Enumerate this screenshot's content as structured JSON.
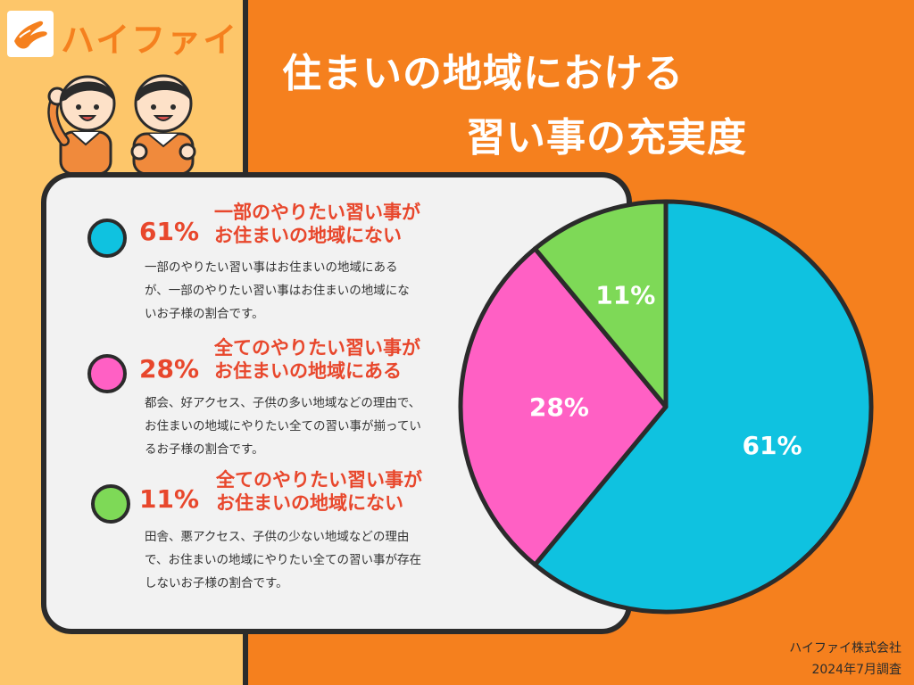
{
  "brand": {
    "name": "ハイファイ"
  },
  "title": {
    "line1": "住まいの地域における",
    "line2": "習い事の充実度"
  },
  "colors": {
    "cyan": "#0fc2e0",
    "pink": "#ff60c4",
    "green": "#7ed957",
    "accent": "#e8472c",
    "orange": "#f5801e"
  },
  "legend": [
    {
      "percent": "61%",
      "heading1": "一部のやりたい習い事が",
      "heading2": "お住まいの地域にない",
      "description": "一部のやりたい習い事はお住まいの地域にあるが、一部のやりたい習い事はお住まいの地域にないお子様の割合です。"
    },
    {
      "percent": "28%",
      "heading1": "全てのやりたい習い事が",
      "heading2": "お住まいの地域にある",
      "description": "都会、好アクセス、子供の多い地域などの理由で、お住まいの地域にやりたい全ての習い事が揃っているお子様の割合です。"
    },
    {
      "percent": "11%",
      "heading1": "全てのやりたい習い事が",
      "heading2": "お住まいの地域にない",
      "description": "田舎、悪アクセス、子供の少ない地域などの理由で、お住まいの地域にやりたい全ての習い事が存在しないお子様の割合です。"
    }
  ],
  "footer": {
    "company": "ハイファイ株式会社",
    "date": "2024年7月調査"
  },
  "chart_data": {
    "type": "pie",
    "title": "住まいの地域における習い事の充実度",
    "slices": [
      {
        "label": "一部のやりたい習い事がお住まいの地域にない",
        "value": 61,
        "color": "#0fc2e0",
        "display": "61%"
      },
      {
        "label": "全てのやりたい習い事がお住まいの地域にある",
        "value": 28,
        "color": "#ff60c4",
        "display": "28%"
      },
      {
        "label": "全てのやりたい習い事がお住まいの地域にない",
        "value": 11,
        "color": "#7ed957",
        "display": "11%"
      }
    ]
  }
}
